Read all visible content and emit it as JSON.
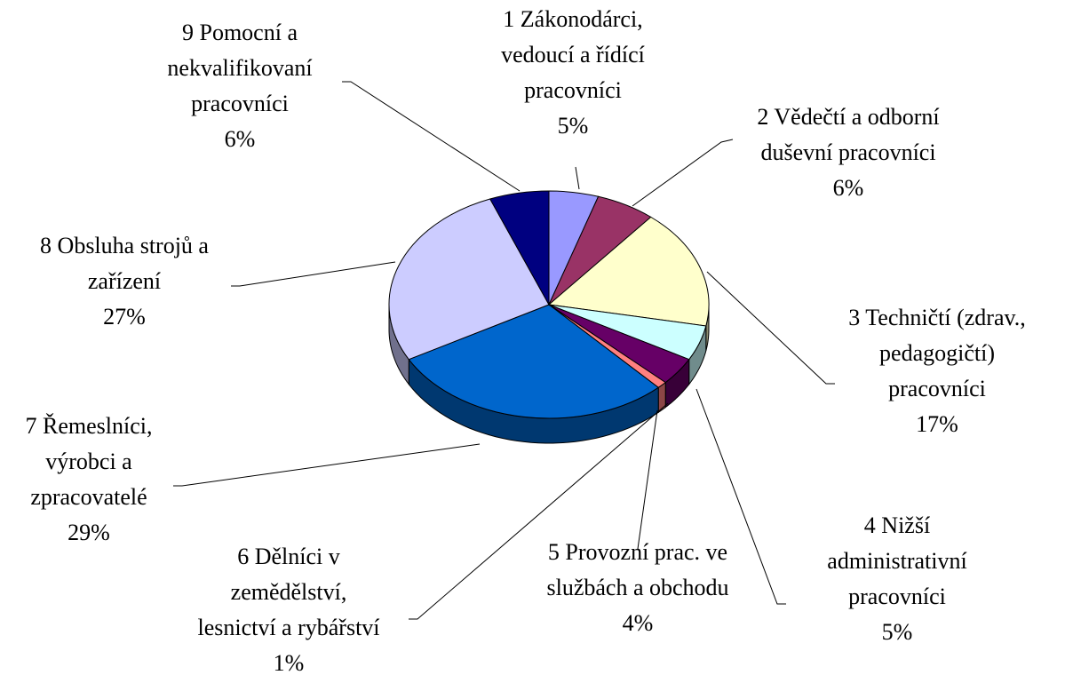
{
  "chart_data": {
    "type": "pie",
    "categories": [
      "1 Zákonodárci,\nvedoucí a řídící\npracovníci",
      "2 Vědečtí a odborní\nduševní pracovníci",
      "3 Techničtí (zdrav.,\npedagogičtí)\npracovníci",
      "4 Nižší\nadministrativní\npracovníci",
      "5 Provozní prac. ve\nslužbách a obchodu",
      "6 Dělníci v\nzemědělství,\nlesnictví a rybářství",
      "7 Řemeslníci,\nvýrobci a\nzpracovatelé",
      "8 Obsluha strojů a\nzařízení",
      "9 Pomocní a\nnekvalifikovaní\npracovníci"
    ],
    "values": [
      5,
      6,
      17,
      5,
      4,
      1,
      29,
      27,
      6
    ],
    "value_labels": [
      "5%",
      "6%",
      "17%",
      "5%",
      "4%",
      "1%",
      "29%",
      "27%",
      "6%"
    ],
    "colors": [
      "#9999FF",
      "#993366",
      "#FFFFCC",
      "#CCFFFF",
      "#660066",
      "#FF8080",
      "#0066CC",
      "#CCCCFF",
      "#000080"
    ]
  }
}
